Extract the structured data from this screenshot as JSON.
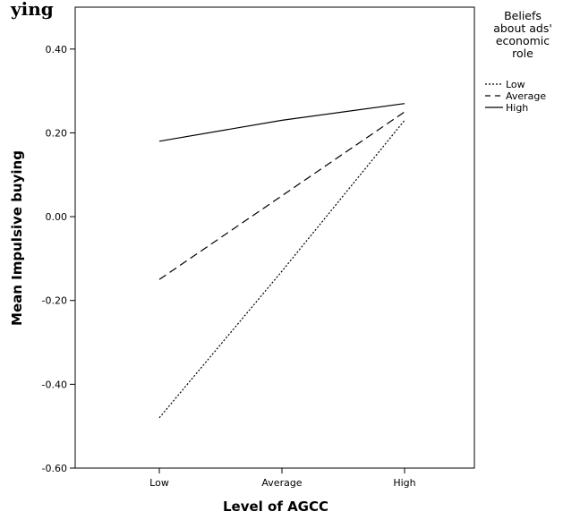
{
  "top_fragment": "ying",
  "chart_data": {
    "type": "line",
    "title": "",
    "xlabel": "Level of AGCC",
    "ylabel": "Mean Impulsive buying",
    "categories": [
      "Low",
      "Average",
      "High"
    ],
    "ylim": [
      -0.6,
      0.5
    ],
    "yticks": [
      {
        "value": 0.4,
        "label": "0.40"
      },
      {
        "value": 0.2,
        "label": "0.20"
      },
      {
        "value": 0.0,
        "label": "0.00"
      },
      {
        "value": -0.2,
        "label": "-0.20"
      },
      {
        "value": -0.4,
        "label": "-0.40"
      },
      {
        "value": -0.6,
        "label": "-0.60"
      }
    ],
    "grid": false,
    "legend": {
      "title_lines": [
        "Beliefs",
        "about ads'",
        "economic",
        "role"
      ],
      "placement": "right"
    },
    "series": [
      {
        "name": "Low",
        "dash": "dotted",
        "values": [
          -0.48,
          -0.13,
          0.23
        ]
      },
      {
        "name": "Average",
        "dash": "dashed",
        "values": [
          -0.15,
          0.05,
          0.25
        ]
      },
      {
        "name": "High",
        "dash": "solid",
        "values": [
          0.18,
          0.23,
          0.27
        ]
      }
    ]
  }
}
